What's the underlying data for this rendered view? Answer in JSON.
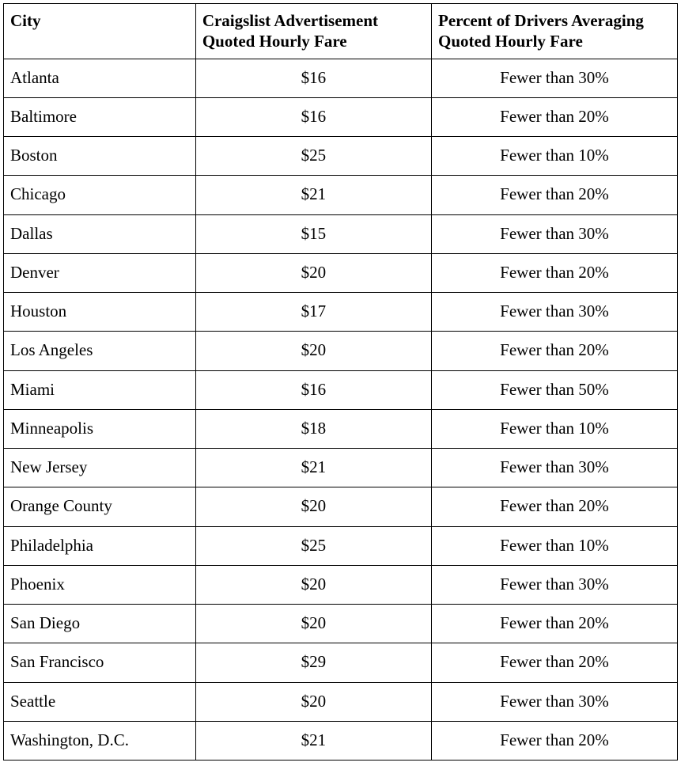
{
  "table": {
    "columns": [
      {
        "key": "city",
        "label": "City"
      },
      {
        "key": "fare",
        "label": "Craigslist Advertisement Quoted Hourly Fare"
      },
      {
        "key": "percent",
        "label": "Percent of Drivers Averaging Quoted Hourly Fare"
      }
    ],
    "rows": [
      {
        "city": "Atlanta",
        "fare": "$16",
        "percent": "Fewer than 30%"
      },
      {
        "city": "Baltimore",
        "fare": "$16",
        "percent": "Fewer than 20%"
      },
      {
        "city": "Boston",
        "fare": "$25",
        "percent": "Fewer than 10%"
      },
      {
        "city": "Chicago",
        "fare": "$21",
        "percent": "Fewer than 20%"
      },
      {
        "city": "Dallas",
        "fare": "$15",
        "percent": "Fewer than 30%"
      },
      {
        "city": "Denver",
        "fare": "$20",
        "percent": "Fewer than 20%"
      },
      {
        "city": "Houston",
        "fare": "$17",
        "percent": "Fewer than 30%"
      },
      {
        "city": "Los Angeles",
        "fare": "$20",
        "percent": "Fewer than 20%"
      },
      {
        "city": "Miami",
        "fare": "$16",
        "percent": "Fewer than 50%"
      },
      {
        "city": "Minneapolis",
        "fare": "$18",
        "percent": "Fewer than 10%"
      },
      {
        "city": "New Jersey",
        "fare": "$21",
        "percent": "Fewer than 30%"
      },
      {
        "city": "Orange County",
        "fare": "$20",
        "percent": "Fewer than 20%"
      },
      {
        "city": "Philadelphia",
        "fare": "$25",
        "percent": "Fewer than 10%"
      },
      {
        "city": "Phoenix",
        "fare": "$20",
        "percent": "Fewer than 30%"
      },
      {
        "city": "San Diego",
        "fare": "$20",
        "percent": "Fewer than 20%"
      },
      {
        "city": "San Francisco",
        "fare": "$29",
        "percent": "Fewer than 20%"
      },
      {
        "city": "Seattle",
        "fare": "$20",
        "percent": "Fewer than 30%"
      },
      {
        "city": "Washington, D.C.",
        "fare": "$21",
        "percent": "Fewer than 20%"
      }
    ],
    "style": {
      "border_color": "#000000",
      "background_color": "#ffffff",
      "font_family": "Times New Roman",
      "header_fontsize_pt": 16,
      "body_fontsize_pt": 16,
      "col_widths_pct": [
        28.5,
        35,
        36.5
      ],
      "col_align": [
        "left",
        "center",
        "center"
      ]
    }
  }
}
